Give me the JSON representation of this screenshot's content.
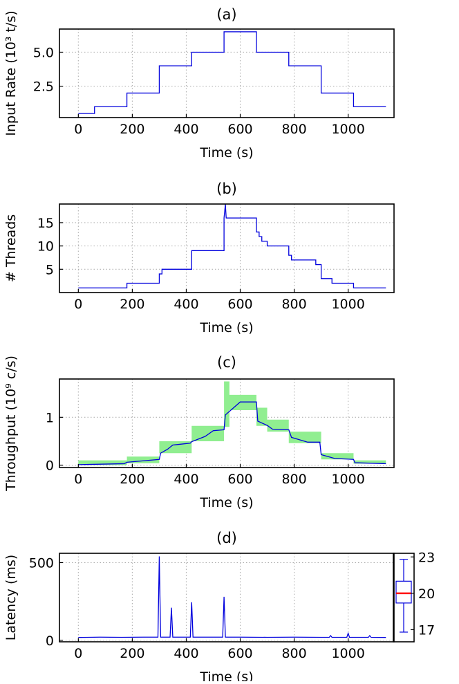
{
  "chart_data": [
    {
      "type": "line",
      "panel_label": "(a)",
      "title": "(a)",
      "xlabel": "Time (s)",
      "ylabel": "Input Rate (10³ t/s)",
      "xlim": [
        -70,
        1170
      ],
      "ylim": [
        0.2,
        6.7
      ],
      "xticks": [
        0,
        200,
        400,
        600,
        800,
        1000
      ],
      "xtick_labels": [
        "0",
        "200",
        "400",
        "600",
        "800",
        "1000"
      ],
      "yticks": [
        2.5,
        5.0
      ],
      "ytick_labels": [
        "2.5",
        "5.0"
      ],
      "grid": true,
      "series": [
        {
          "name": "input rate",
          "color": "#0000dd",
          "x": [
            0,
            60,
            60,
            180,
            180,
            300,
            300,
            420,
            420,
            540,
            540,
            660,
            660,
            780,
            780,
            900,
            900,
            1020,
            1020,
            1140
          ],
          "y": [
            0.5,
            0.5,
            1.0,
            1.0,
            2.0,
            2.0,
            4.0,
            4.0,
            5.0,
            5.0,
            6.5,
            6.5,
            5.0,
            5.0,
            4.0,
            4.0,
            2.0,
            2.0,
            1.0,
            1.0
          ]
        }
      ]
    },
    {
      "type": "line",
      "panel_label": "(b)",
      "title": "(b)",
      "xlabel": "Time (s)",
      "ylabel": "# Threads",
      "xlim": [
        -70,
        1170
      ],
      "ylim": [
        0,
        19
      ],
      "xticks": [
        0,
        200,
        400,
        600,
        800,
        1000
      ],
      "xtick_labels": [
        "0",
        "200",
        "400",
        "600",
        "800",
        "1000"
      ],
      "yticks": [
        5,
        10,
        15
      ],
      "ytick_labels": [
        "5",
        "10",
        "15"
      ],
      "grid": true,
      "series": [
        {
          "name": "threads",
          "color": "#0000dd",
          "x": [
            0,
            180,
            180,
            300,
            300,
            310,
            310,
            330,
            330,
            420,
            420,
            540,
            540,
            545,
            548,
            660,
            660,
            670,
            670,
            680,
            680,
            690,
            690,
            700,
            700,
            780,
            780,
            790,
            790,
            800,
            800,
            880,
            880,
            900,
            900,
            940,
            940,
            1020,
            1020,
            1140
          ],
          "y": [
            1,
            1,
            2,
            2,
            4,
            4,
            5,
            5,
            5,
            5,
            9,
            9,
            16,
            19,
            16,
            16,
            13,
            13,
            12,
            12,
            11,
            11,
            11,
            11,
            10,
            10,
            8,
            8,
            7,
            7,
            7,
            7,
            6,
            6,
            3,
            3,
            2,
            2,
            1,
            1
          ]
        }
      ]
    },
    {
      "type": "line",
      "panel_label": "(c)",
      "title": "(c)",
      "xlabel": "Time (s)",
      "ylabel": "Throughput (10⁹ c/s)",
      "xlim": [
        -70,
        1170
      ],
      "ylim": [
        -0.05,
        1.8
      ],
      "xticks": [
        0,
        200,
        400,
        600,
        800,
        1000
      ],
      "xtick_labels": [
        "0",
        "200",
        "400",
        "600",
        "800",
        "1000"
      ],
      "yticks": [
        0,
        1
      ],
      "ytick_labels": [
        "0",
        "1"
      ],
      "grid": true,
      "band": {
        "name": "range",
        "color": "#90ee90",
        "x": [
          0,
          180,
          180,
          300,
          300,
          420,
          420,
          540,
          540,
          560,
          560,
          660,
          660,
          700,
          700,
          780,
          780,
          900,
          900,
          1020,
          1020,
          1140
        ],
        "low": [
          0.0,
          0.0,
          0.04,
          0.04,
          0.25,
          0.25,
          0.5,
          0.5,
          0.8,
          0.8,
          1.15,
          1.15,
          0.82,
          0.82,
          0.7,
          0.7,
          0.46,
          0.46,
          0.12,
          0.12,
          0.03,
          0.03
        ],
        "high": [
          0.1,
          0.1,
          0.18,
          0.18,
          0.5,
          0.5,
          0.82,
          0.82,
          1.75,
          1.75,
          1.47,
          1.47,
          1.2,
          1.2,
          0.95,
          0.95,
          0.7,
          0.7,
          0.25,
          0.25,
          0.1,
          0.1
        ]
      },
      "series": [
        {
          "name": "throughput",
          "color": "#0000dd",
          "x": [
            0,
            170,
            180,
            300,
            305,
            330,
            350,
            415,
            420,
            470,
            500,
            540,
            545,
            600,
            660,
            665,
            700,
            720,
            780,
            790,
            850,
            895,
            900,
            950,
            1020,
            1025,
            1140
          ],
          "y": [
            0.01,
            0.03,
            0.06,
            0.12,
            0.25,
            0.33,
            0.42,
            0.46,
            0.49,
            0.6,
            0.72,
            0.74,
            1.05,
            1.32,
            1.32,
            0.92,
            0.83,
            0.75,
            0.74,
            0.58,
            0.48,
            0.48,
            0.22,
            0.14,
            0.12,
            0.05,
            0.03
          ]
        }
      ]
    },
    {
      "type": "line",
      "panel_label": "(d)",
      "title": "(d)",
      "xlabel": "Time (s)",
      "ylabel": "Latency (ms)",
      "xlim": [
        -70,
        1170
      ],
      "ylim": [
        -10,
        560
      ],
      "xticks": [
        0,
        200,
        400,
        600,
        800,
        1000
      ],
      "xtick_labels": [
        "0",
        "200",
        "400",
        "600",
        "800",
        "1000"
      ],
      "yticks": [
        0,
        500
      ],
      "ytick_labels": [
        "0",
        "500"
      ],
      "grid": true,
      "series": [
        {
          "name": "latency",
          "color": "#0000dd",
          "x": [
            0,
            80,
            160,
            240,
            295,
            300,
            305,
            340,
            345,
            350,
            415,
            420,
            425,
            535,
            540,
            545,
            600,
            700,
            800,
            900,
            930,
            935,
            940,
            995,
            1000,
            1005,
            1075,
            1080,
            1085,
            1140
          ],
          "y": [
            18,
            20,
            19,
            20,
            20,
            540,
            20,
            20,
            210,
            20,
            20,
            245,
            20,
            20,
            280,
            20,
            20,
            19,
            20,
            19,
            19,
            30,
            19,
            19,
            45,
            19,
            19,
            30,
            19,
            18
          ]
        }
      ],
      "boxplot": {
        "ylim": [
          16,
          23.3
        ],
        "yticks": [
          17,
          20,
          23
        ],
        "ytick_labels": [
          "17",
          "20",
          "23"
        ],
        "whisker_low": 16.8,
        "q1": 19.2,
        "median": 20.0,
        "q3": 21.0,
        "whisker_high": 22.8,
        "box_color": "#0000dd",
        "median_color": "#ff0000"
      }
    }
  ]
}
